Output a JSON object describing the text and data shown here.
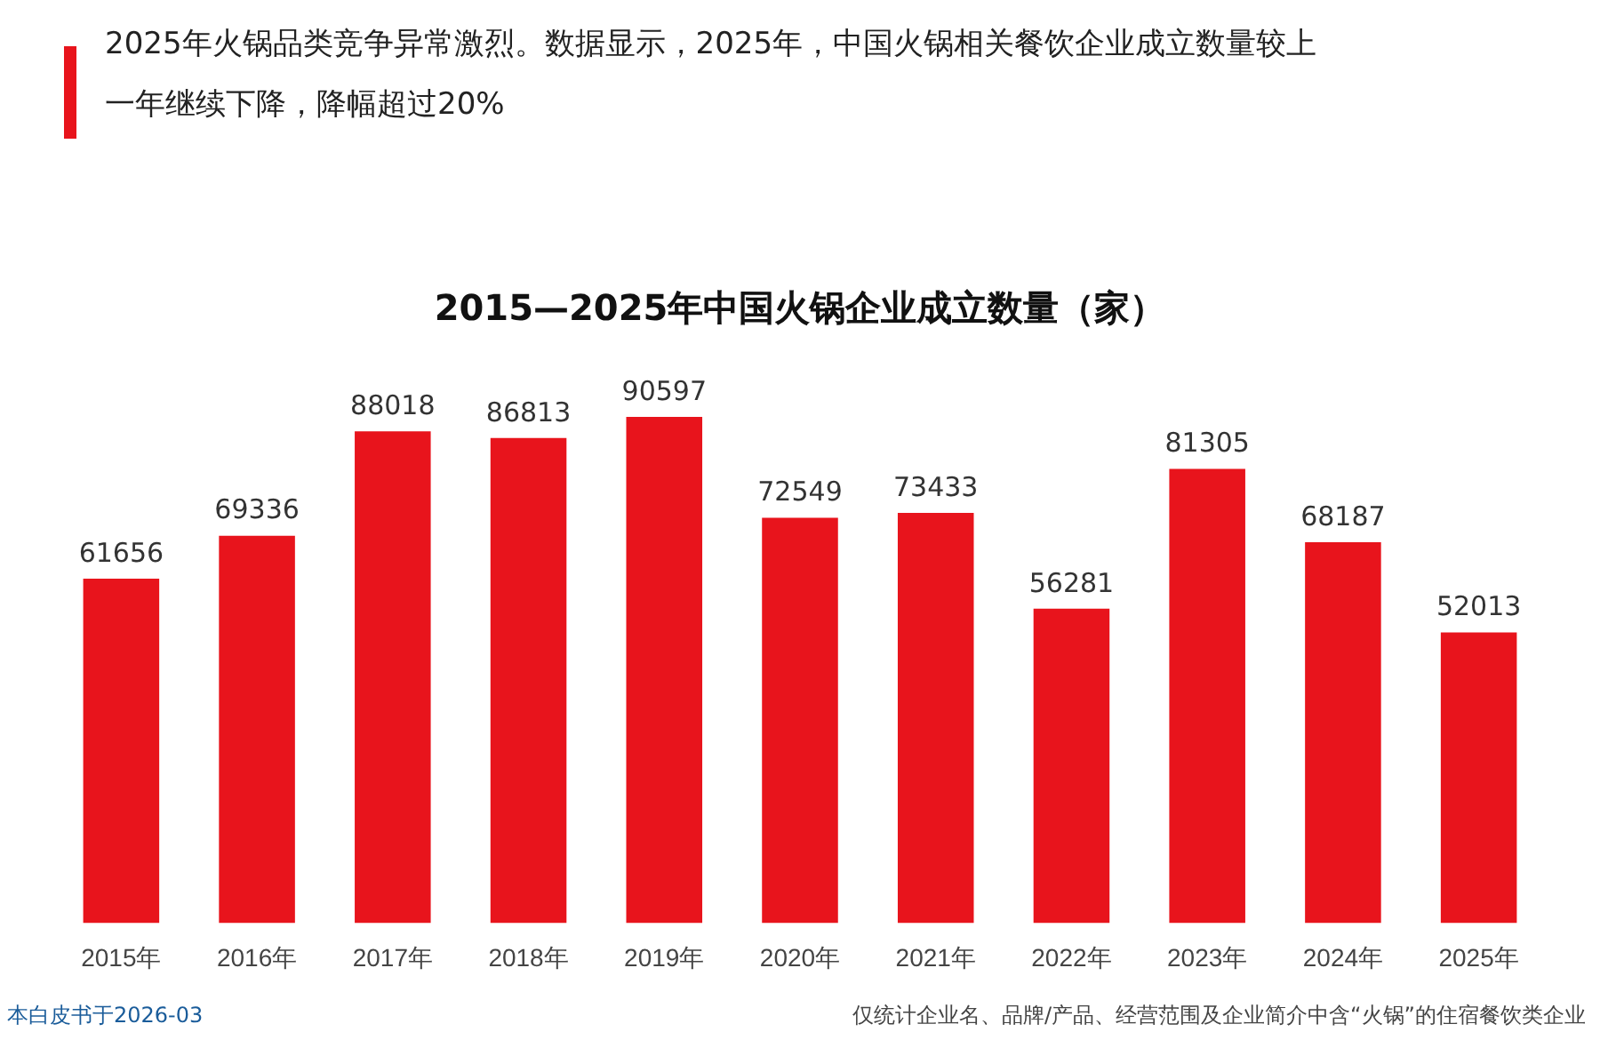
{
  "chart_data": {
    "type": "bar",
    "subtitle": "2025年火锅品类竞争异常激烈。数据显示，2025年，中国火锅相关餐饮企业成立数量较上一年继续下降，降幅超过20%",
    "title": "2015—2025年中国火锅企业成立数量（家）",
    "categories": [
      "2015年",
      "2016年",
      "2017年",
      "2018年",
      "2019年",
      "2020年",
      "2021年",
      "2022年",
      "2023年",
      "2024年",
      "2025年"
    ],
    "values": [
      61656,
      69336,
      88018,
      86813,
      90597,
      72549,
      73433,
      56281,
      81305,
      68187,
      52013
    ],
    "color": "#e8141c",
    "data_labels": true,
    "grid": false,
    "legend": false,
    "annotations": [
      "本白皮书于2026-03",
      "仅统计企业名、品牌/产品、经营范围及企业简介中含“火锅”的住宿餐饮类企业"
    ]
  }
}
